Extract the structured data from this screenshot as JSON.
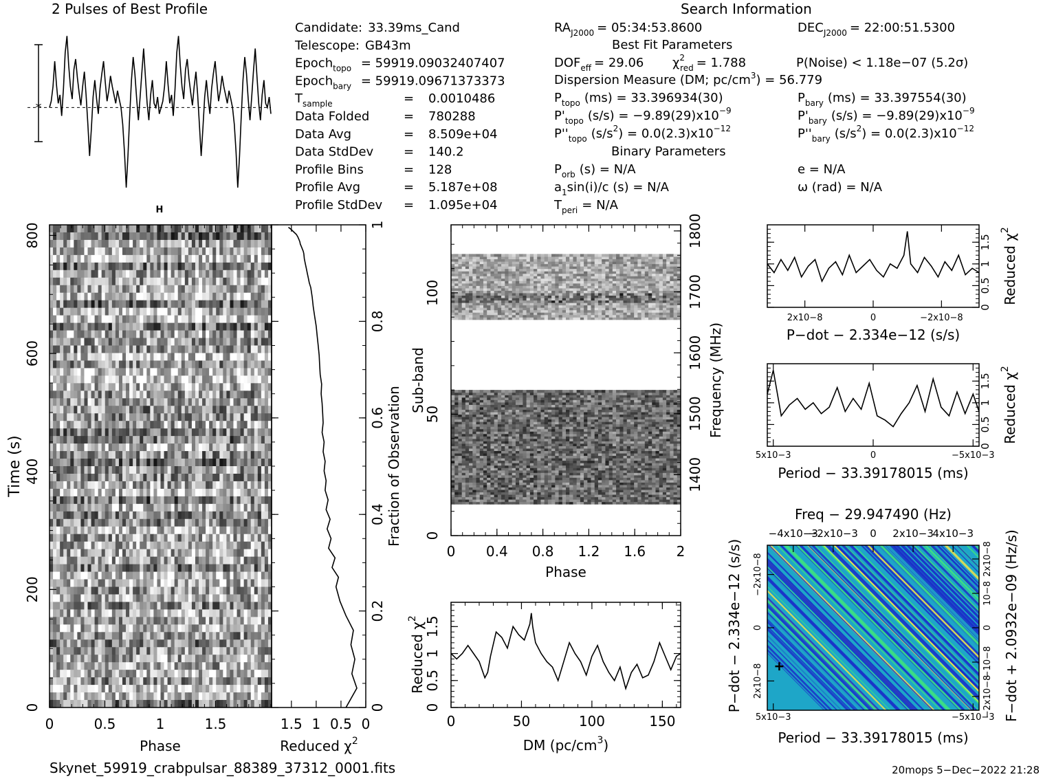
{
  "header": {
    "profile_title": "2 Pulses of Best Profile",
    "search_title": "Search Information",
    "best_fit_title": "Best Fit Parameters",
    "binary_title": "Binary Parameters"
  },
  "candidate_info": [
    {
      "label": "Candidate:",
      "value": "33.39ms_Cand"
    },
    {
      "label": "Telescope:",
      "value": "GB43m"
    },
    {
      "label": "Epoch",
      "sub": "topo",
      "value": "= 59919.09032407407"
    },
    {
      "label": "Epoch",
      "sub": "bary",
      "value": "= 59919.09671373373"
    },
    {
      "label": "T",
      "sub": "sample",
      "eq": "=",
      "value": "0.0010486"
    },
    {
      "label": "Data Folded",
      "eq": "=",
      "value": "780288"
    },
    {
      "label": "Data Avg",
      "eq": "=",
      "value": "8.509e+04"
    },
    {
      "label": "Data StdDev",
      "eq": "=",
      "value": "140.2"
    },
    {
      "label": "Profile Bins",
      "eq": "=",
      "value": "128"
    },
    {
      "label": "Profile Avg",
      "eq": "=",
      "value": "5.187e+08"
    },
    {
      "label": "Profile StdDev",
      "eq": "=",
      "value": "1.095e+04"
    }
  ],
  "search_info": {
    "ra_label": "RA",
    "ra_sub": "J2000",
    "ra_value": "= 05:34:53.8600",
    "dec_label": "DEC",
    "dec_sub": "J2000",
    "dec_value": "= 22:00:51.5300",
    "dof_label": "DOF",
    "dof_sub": "eff",
    "dof_value": "= 29.06",
    "chi_label": "χ",
    "chi_sup": "2",
    "chi_sub": "red",
    "chi_value": "= 1.788",
    "pnoise": "P(Noise) < 1.18e−07   (5.2σ)",
    "dm_text": "Dispersion Measure (DM; pc/cm",
    "dm_sup": "3",
    "dm_value": ") = 56.779",
    "ptopo_label": "P",
    "ptopo_sub": "topo",
    "ptopo_value": "(ms)  =   33.396934(30)",
    "pbary_label": "P",
    "pbary_sub": "bary",
    "pbary_value": "(ms)  =   33.397554(30)",
    "pdtopo_label": "P'",
    "pdtopo_sub": "topo",
    "pdtopo_value": "(s/s) = −9.89(29)x10",
    "pdtopo_exp": "−9",
    "pdbary_label": "P'",
    "pdbary_sub": "bary",
    "pdbary_value": "(s/s) = −9.89(29)x10",
    "pdbary_exp": "−9",
    "pddtopo_label": "P''",
    "pddtopo_sub": "topo",
    "pddtopo_value": "(s/s",
    "pddtopo_sup": "2",
    "pddtopo_value2": ") = 0.0(2.3)x10",
    "pddtopo_exp": "−12",
    "pddbary_label": "P''",
    "pddbary_sub": "bary",
    "pddbary_value": "(s/s",
    "pddbary_sup": "2",
    "pddbary_value2": ") = 0.0(2.3)x10",
    "pddbary_exp": "−12",
    "porb_label": "P",
    "porb_sub": "orb",
    "porb_value": "(s) = N/A",
    "e_text": "e = N/A",
    "a1_label": "a",
    "a1_sub": "1",
    "a1_value": "sin(i)/c (s) = N/A",
    "omega_text": "ω (rad) = N/A",
    "tperi_label": "T",
    "tperi_sub": "peri",
    "tperi_value": "= N/A"
  },
  "footer": {
    "filename": "Skynet_59919_crabpulsar_88389_37312_0001.fits",
    "stamp": "20mops   5−Dec−2022 21:28"
  },
  "colors": {
    "axis": "#000000",
    "line": "#000000",
    "greyscale_dark": "#000000",
    "greyscale_light": "#ffffff",
    "ppdot_low": "#1b2fc9",
    "ppdot_mid": "#1ea6c8",
    "ppdot_high": "#3fe57a",
    "ppdot_peak": "#f1e24a"
  },
  "chart_data": [
    {
      "id": "profile",
      "type": "line",
      "title": "2 Pulses of Best Profile",
      "xlim": [
        0,
        2
      ],
      "y": [
        0.0,
        0.3,
        1.0,
        2.2,
        1.1,
        0.2,
        0.6,
        -0.4,
        0.9,
        2.6,
        3.4,
        2.0,
        1.0,
        0.4,
        1.8,
        2.3,
        1.4,
        0.7,
        0.1,
        1.0,
        1.7,
        0.6,
        -0.8,
        -2.3,
        -1.0,
        0.5,
        1.3,
        0.4,
        -0.3,
        0.9,
        1.6,
        2.2,
        1.2,
        0.3,
        0.8,
        1.5,
        1.0,
        0.6,
        0.2,
        0.8,
        0.4,
        0.0,
        -0.8,
        -2.1,
        -3.8,
        -2.3,
        -0.4,
        1.3,
        2.4,
        1.6,
        0.4,
        -0.6,
        0.5,
        1.7,
        2.8,
        1.5,
        0.2,
        -0.6,
        0.6,
        1.3,
        0.2,
        0.0,
        0.5,
        -0.3,
        0.0,
        0.3,
        1.0,
        2.2,
        1.1,
        0.2,
        0.6,
        -0.4,
        0.9,
        2.6,
        3.4,
        2.0,
        1.0,
        0.4,
        1.8,
        2.3,
        1.4,
        0.7,
        0.1,
        1.0,
        1.7,
        0.6,
        -0.8,
        -2.3,
        -1.0,
        0.5,
        1.3,
        0.4,
        -0.3,
        0.9,
        1.6,
        2.2,
        1.2,
        0.3,
        0.8,
        1.5,
        1.0,
        0.6,
        0.2,
        0.8,
        0.4,
        0.0,
        -0.8,
        -2.1,
        -3.8,
        -2.3,
        -0.4,
        1.3,
        2.4,
        1.6,
        0.4,
        -0.6,
        0.5,
        1.7,
        2.8,
        1.5,
        0.2,
        -0.6,
        0.6,
        1.3,
        0.2,
        0.0,
        0.5,
        -0.3
      ],
      "ylim": [
        -4.2,
        3.8
      ],
      "marker": "*"
    },
    {
      "id": "time_phase",
      "type": "heatmap",
      "xlabel": "Phase",
      "ylabel": "Time (s)",
      "xlim": [
        0,
        2
      ],
      "ylim": [
        0,
        818
      ],
      "xticks": [
        "0",
        "0.5",
        "1",
        "1.5"
      ],
      "xtick_values": [
        0,
        0.5,
        1,
        1.5
      ],
      "yticks": [
        "0",
        "200",
        "400",
        "600",
        "800"
      ],
      "ytick_values": [
        0,
        200,
        400,
        600,
        800
      ],
      "rows": 64,
      "cols": 64,
      "colormap": "greyscale"
    },
    {
      "id": "time_chi2",
      "type": "line",
      "xlabel": "Reduced χ",
      "xlabel_sup": "2",
      "ylabel": "Fraction of Observation",
      "xlim": [
        1.9,
        0
      ],
      "ylim": [
        0,
        1
      ],
      "xticks": [
        "1.5",
        "1",
        "0.5",
        "0"
      ],
      "xtick_values": [
        1.5,
        1,
        0.5,
        0
      ],
      "yticks": [
        "0",
        "0.2",
        "0.4",
        "0.6",
        "0.8",
        "1"
      ],
      "ytick_values": [
        0,
        0.2,
        0.4,
        0.6,
        0.8,
        1
      ],
      "x": [
        0.4,
        0.18,
        0.28,
        0.22,
        0.3,
        0.25,
        0.4,
        0.52,
        0.6,
        0.55,
        0.68,
        0.62,
        0.75,
        0.7,
        0.78,
        0.72,
        0.8,
        0.76,
        0.82,
        0.8,
        0.84,
        0.82,
        0.86,
        0.84,
        0.88,
        0.86,
        0.87,
        0.88,
        0.9,
        0.89,
        0.92,
        0.93,
        0.94,
        0.96,
        0.98,
        1.0,
        1.03,
        1.06,
        1.08,
        1.11,
        1.14,
        1.16,
        1.18,
        1.2,
        1.22,
        1.24,
        1.25,
        1.26,
        1.28,
        1.3,
        1.32,
        1.33,
        1.35,
        1.37,
        1.4,
        1.45,
        1.5,
        1.56
      ],
      "y": [
        0.0,
        0.04,
        0.07,
        0.1,
        0.13,
        0.16,
        0.19,
        0.22,
        0.25,
        0.27,
        0.29,
        0.31,
        0.33,
        0.35,
        0.37,
        0.39,
        0.41,
        0.43,
        0.45,
        0.47,
        0.49,
        0.51,
        0.53,
        0.55,
        0.57,
        0.59,
        0.61,
        0.63,
        0.65,
        0.67,
        0.69,
        0.71,
        0.73,
        0.75,
        0.77,
        0.79,
        0.81,
        0.83,
        0.85,
        0.87,
        0.88,
        0.89,
        0.9,
        0.91,
        0.92,
        0.93,
        0.94,
        0.945,
        0.95,
        0.955,
        0.96,
        0.965,
        0.97,
        0.975,
        0.98,
        0.985,
        0.99,
        0.995
      ]
    },
    {
      "id": "subband_phase",
      "type": "heatmap",
      "xlabel": "Phase",
      "ylabel": "Sub-band",
      "ylabel_right": "Frequency (MHz)",
      "xlim": [
        0,
        2
      ],
      "ylim": [
        0,
        128
      ],
      "xticks": [
        "0",
        "0.4",
        "0.8",
        "1.2",
        "1.6",
        "2"
      ],
      "xtick_values": [
        0,
        0.4,
        0.8,
        1.2,
        1.6,
        2
      ],
      "yticks": [
        "0",
        "50",
        "100"
      ],
      "ytick_values": [
        0,
        50,
        100
      ],
      "y2lim": [
        1300,
        1810
      ],
      "y2ticks": [
        "1400",
        "1500",
        "1600",
        "1700",
        "1800"
      ],
      "y2tick_values": [
        1400,
        1500,
        1600,
        1700,
        1800
      ],
      "bands_with_data": [
        [
          13,
          60
        ],
        [
          89,
          116
        ]
      ],
      "colormap": "greyscale"
    },
    {
      "id": "dm_chi2",
      "type": "line",
      "xlabel": "DM (pc/cm",
      "xlabel_sup": "3",
      "xlabel_end": ")",
      "ylabel": "Reduced χ",
      "ylabel_sup": "2",
      "xlim": [
        0,
        163
      ],
      "ylim": [
        0,
        1.95
      ],
      "xticks": [
        "0",
        "50",
        "100",
        "150"
      ],
      "xtick_values": [
        0,
        50,
        100,
        150
      ],
      "yticks": [
        "0",
        "0.5",
        "1",
        "1.5"
      ],
      "ytick_values": [
        0,
        0.5,
        1,
        1.5
      ],
      "x": [
        0,
        4,
        8,
        12,
        16,
        20,
        24,
        26,
        28,
        32,
        36,
        40,
        44,
        48,
        52,
        56,
        57,
        58,
        60,
        64,
        68,
        72,
        76,
        80,
        84,
        88,
        92,
        96,
        100,
        104,
        108,
        112,
        116,
        120,
        124,
        128,
        132,
        136,
        140,
        144,
        148,
        152,
        156,
        160,
        163
      ],
      "y": [
        1.0,
        0.9,
        1.0,
        1.15,
        1.0,
        0.85,
        0.55,
        0.65,
        0.95,
        1.4,
        1.3,
        1.1,
        1.5,
        1.35,
        1.25,
        1.55,
        1.75,
        1.5,
        1.2,
        1.0,
        0.85,
        0.75,
        0.5,
        0.85,
        1.2,
        1.0,
        0.85,
        0.6,
        0.95,
        1.15,
        0.85,
        0.65,
        0.5,
        0.75,
        0.35,
        0.65,
        0.8,
        0.55,
        0.6,
        0.85,
        1.2,
        0.95,
        0.7,
        0.95,
        1.0
      ]
    },
    {
      "id": "pdot_chi2",
      "type": "line",
      "xlabel": "P−dot − 2.334e−12 (s/s)",
      "ylabel": "Reduced χ",
      "ylabel_sup": "2",
      "xlim": [
        3.1e-08,
        -3.1e-08
      ],
      "ylim": [
        0,
        1.9
      ],
      "xticks": [
        "2x10−8",
        "0",
        "−2x10−8"
      ],
      "xtick_values": [
        2e-08,
        0,
        -2e-08
      ],
      "yticks": [
        "0",
        "0.5",
        "1",
        "1.5"
      ],
      "ytick_values": [
        0,
        0.5,
        1,
        1.5
      ],
      "x": [
        3.1e-08,
        2.9e-08,
        2.7e-08,
        2.5e-08,
        2.3e-08,
        2.1e-08,
        1.9e-08,
        1.7e-08,
        1.5e-08,
        1.3e-08,
        1.1e-08,
        9e-09,
        7e-09,
        5e-09,
        3e-09,
        1e-09,
        -1e-09,
        -3e-09,
        -5e-09,
        -7e-09,
        -9e-09,
        -1e-08,
        -1.1e-08,
        -1.3e-08,
        -1.5e-08,
        -1.7e-08,
        -1.9e-08,
        -2.1e-08,
        -2.3e-08,
        -2.5e-08,
        -2.7e-08,
        -2.9e-08,
        -3.1e-08
      ],
      "y": [
        1.0,
        0.8,
        1.1,
        0.85,
        1.15,
        0.7,
        0.95,
        1.1,
        0.6,
        0.9,
        1.05,
        0.75,
        1.2,
        0.8,
        0.95,
        1.1,
        0.85,
        0.7,
        1.0,
        0.9,
        1.2,
        1.75,
        1.0,
        0.8,
        1.15,
        0.95,
        0.7,
        1.05,
        0.85,
        1.2,
        0.75,
        0.9,
        0.8
      ]
    },
    {
      "id": "period_chi2",
      "type": "line",
      "xlabel": "Period − 33.39178015 (ms)",
      "ylabel": "Reduced χ",
      "ylabel_sup": "2",
      "xlim": [
        0.0053,
        -0.0053
      ],
      "ylim": [
        0,
        1.9
      ],
      "xticks": [
        "5x10−3",
        "0",
        "−5x10−3"
      ],
      "xtick_values": [
        0.005,
        0,
        -0.005
      ],
      "yticks": [
        "0",
        "0.5",
        "1",
        "1.5"
      ],
      "ytick_values": [
        0,
        0.5,
        1,
        1.5
      ],
      "x": [
        0.0053,
        0.005,
        0.0046,
        0.0042,
        0.0038,
        0.0034,
        0.003,
        0.0026,
        0.0022,
        0.0018,
        0.0014,
        0.001,
        0.0006,
        0.0002,
        -0.0002,
        -0.0006,
        -0.001,
        -0.0014,
        -0.0018,
        -0.0022,
        -0.0026,
        -0.003,
        -0.0034,
        -0.0038,
        -0.0042,
        -0.0046,
        -0.005,
        -0.0053
      ],
      "y": [
        1.2,
        1.75,
        0.7,
        0.95,
        1.1,
        0.85,
        1.0,
        0.75,
        0.9,
        1.35,
        0.8,
        1.1,
        0.85,
        1.45,
        0.7,
        0.6,
        0.45,
        0.75,
        1.0,
        1.4,
        0.8,
        1.55,
        0.9,
        0.7,
        1.25,
        0.75,
        1.2,
        0.8
      ]
    },
    {
      "id": "p_pdot",
      "type": "heatmap",
      "title": "Freq − 29.947490 (Hz)",
      "xlabel": "Period − 33.39178015 (ms)",
      "ylabel": "P−dot − 2.334e−12 (s/s)",
      "ylabel_right": "F−dot + 2.0932e−09 (Hz/s)",
      "xlim": [
        0.0053,
        -0.0053
      ],
      "ylim": [
        3.1e-08,
        -3.1e-08
      ],
      "xticks": [
        "5x10−3",
        "−5x10−3"
      ],
      "xtick_values": [
        0.005,
        -0.005
      ],
      "topticks": [
        "−4x10−3",
        "−2x10−3",
        "0",
        "2x10−3",
        "4x10−3"
      ],
      "topvalues": [
        -0.004,
        -0.002,
        0,
        0.002,
        0.004
      ],
      "yticks": [
        "−2x10−8",
        "0",
        "2x10−8"
      ],
      "ytick_values": [
        -2e-08,
        0,
        2e-08
      ],
      "y2ticks": [
        "2x10−8",
        "10−8",
        "0",
        "−10−8",
        "−2x10−8"
      ],
      "best_marker": [
        0.0047,
        -1.45e-08
      ],
      "colormap": "rainbow"
    }
  ]
}
